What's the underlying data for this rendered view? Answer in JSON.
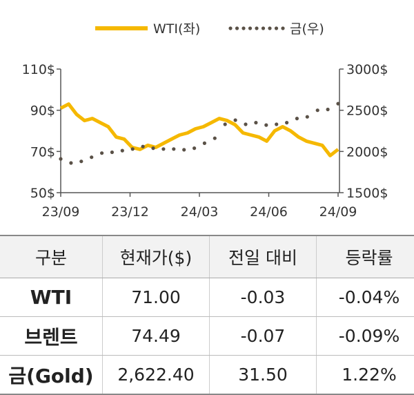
{
  "legend": [
    {
      "label": "WTI(좌)",
      "color": "#f5b800",
      "style": "solid"
    },
    {
      "label": "금(우)",
      "color": "#5a5147",
      "style": "dotted"
    }
  ],
  "chart_data": {
    "type": "line",
    "x_ticks": [
      "23/09",
      "23/12",
      "24/03",
      "24/06",
      "24/09"
    ],
    "y_left_ticks": [
      "110$",
      "90$",
      "70$",
      "50$"
    ],
    "y_right_ticks": [
      "3000$",
      "2500$",
      "2000$",
      "1500$"
    ],
    "y_left_range": [
      50,
      110
    ],
    "y_right_range": [
      1500,
      3000
    ],
    "series": [
      {
        "name": "WTI(좌)",
        "axis": "left",
        "color": "#f5b800",
        "x": [
          "23/09",
          "23/09",
          "23/10",
          "23/10",
          "23/10",
          "23/10",
          "23/11",
          "23/11",
          "23/11",
          "23/12",
          "23/12",
          "23/12",
          "24/01",
          "24/01",
          "24/01",
          "24/02",
          "24/02",
          "24/03",
          "24/03",
          "24/03",
          "24/04",
          "24/04",
          "24/04",
          "24/05",
          "24/05",
          "24/05",
          "24/06",
          "24/06",
          "24/07",
          "24/07",
          "24/07",
          "24/08",
          "24/08",
          "24/08",
          "24/09",
          "24/09"
        ],
        "values": [
          91,
          93,
          88,
          85,
          86,
          84,
          82,
          77,
          76,
          72,
          71,
          73,
          72,
          74,
          76,
          78,
          79,
          81,
          82,
          84,
          86,
          85,
          83,
          79,
          78,
          77,
          75,
          80,
          82,
          80,
          77,
          75,
          74,
          73,
          68,
          71
        ]
      },
      {
        "name": "금(우)",
        "axis": "right",
        "color": "#5a5147",
        "x": [
          "23/09",
          "23/09",
          "23/10",
          "23/10",
          "23/10",
          "23/11",
          "23/11",
          "23/11",
          "23/12",
          "23/12",
          "24/01",
          "24/01",
          "24/02",
          "24/02",
          "24/03",
          "24/03",
          "24/04",
          "24/04",
          "24/05",
          "24/05",
          "24/06",
          "24/06",
          "24/07",
          "24/07",
          "24/08",
          "24/08",
          "24/09",
          "24/09"
        ],
        "values": [
          1910,
          1860,
          1880,
          1930,
          1980,
          1990,
          2010,
          2030,
          2060,
          2040,
          2030,
          2030,
          2020,
          2040,
          2100,
          2160,
          2330,
          2380,
          2330,
          2350,
          2320,
          2330,
          2350,
          2400,
          2420,
          2500,
          2510,
          2580
        ]
      }
    ]
  },
  "table": {
    "headers": [
      "구분",
      "현재가($)",
      "전일 대비",
      "등락률"
    ],
    "rows": [
      [
        "WTI",
        "71.00",
        "-0.03",
        "-0.04%"
      ],
      [
        "브렌트",
        "74.49",
        "-0.07",
        "-0.09%"
      ],
      [
        "금(Gold)",
        "2,622.40",
        "31.50",
        "1.22%"
      ]
    ]
  }
}
